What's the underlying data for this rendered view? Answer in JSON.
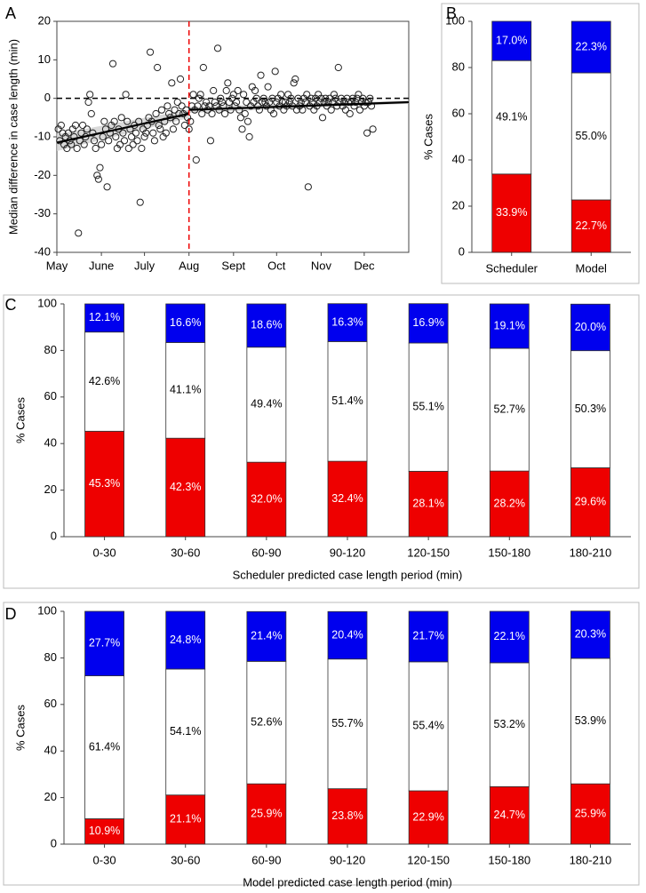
{
  "colors": {
    "red": "#ee0000",
    "white": "#ffffff",
    "blue": "#0000ee",
    "axis": "#444444",
    "refline": "#ee0000"
  },
  "chart_data": [
    {
      "id": "A",
      "panel_label": "A",
      "type": "scatter",
      "ylabel": "Median difference in case length (min)",
      "xlabel": "",
      "x_tick_labels": [
        "May",
        "June",
        "July",
        "Aug",
        "Sept",
        "Oct",
        "Nov",
        "Dec"
      ],
      "x_ticks": [
        0,
        31,
        61,
        92,
        123,
        153,
        184,
        214
      ],
      "xlim": [
        0,
        245
      ],
      "ylim": [
        -40,
        20
      ],
      "y_ticks": [
        -40,
        -30,
        -20,
        -10,
        0,
        10,
        20
      ],
      "points": [
        [
          1,
          -8
        ],
        [
          2,
          -11
        ],
        [
          3,
          -7
        ],
        [
          4,
          -9
        ],
        [
          5,
          -12
        ],
        [
          6,
          -10
        ],
        [
          7,
          -13
        ],
        [
          8,
          -9
        ],
        [
          9,
          -11
        ],
        [
          10,
          -12
        ],
        [
          11,
          -8
        ],
        [
          12,
          -10
        ],
        [
          13,
          -7
        ],
        [
          14,
          -13
        ],
        [
          15,
          -35
        ],
        [
          16,
          -11
        ],
        [
          17,
          -9
        ],
        [
          18,
          -7
        ],
        [
          19,
          -12
        ],
        [
          20,
          -10
        ],
        [
          21,
          -8
        ],
        [
          22,
          -1
        ],
        [
          23,
          1
        ],
        [
          24,
          -4
        ],
        [
          25,
          -9
        ],
        [
          26,
          -11
        ],
        [
          27,
          -13
        ],
        [
          28,
          -20
        ],
        [
          29,
          -21
        ],
        [
          30,
          -18
        ],
        [
          31,
          -12
        ],
        [
          32,
          -10
        ],
        [
          33,
          -6
        ],
        [
          34,
          -8
        ],
        [
          35,
          -23
        ],
        [
          36,
          -11
        ],
        [
          37,
          -9
        ],
        [
          38,
          -7
        ],
        [
          39,
          9
        ],
        [
          40,
          -6
        ],
        [
          41,
          -10
        ],
        [
          42,
          -13
        ],
        [
          43,
          -8
        ],
        [
          44,
          -12
        ],
        [
          45,
          -5
        ],
        [
          46,
          -9
        ],
        [
          47,
          -11
        ],
        [
          48,
          1
        ],
        [
          49,
          -6
        ],
        [
          50,
          -13
        ],
        [
          51,
          -8
        ],
        [
          52,
          -10
        ],
        [
          53,
          -12
        ],
        [
          54,
          -7
        ],
        [
          55,
          -9
        ],
        [
          56,
          -11
        ],
        [
          57,
          -6
        ],
        [
          58,
          -27
        ],
        [
          59,
          -13
        ],
        [
          60,
          -8
        ],
        [
          61,
          -10
        ],
        [
          62,
          -9
        ],
        [
          63,
          -7
        ],
        [
          64,
          -5
        ],
        [
          65,
          12
        ],
        [
          66,
          -6
        ],
        [
          67,
          -9
        ],
        [
          68,
          -11
        ],
        [
          69,
          -4
        ],
        [
          70,
          8
        ],
        [
          71,
          -7
        ],
        [
          72,
          -8
        ],
        [
          73,
          -3
        ],
        [
          74,
          -10
        ],
        [
          75,
          -6
        ],
        [
          76,
          -9
        ],
        [
          77,
          -2
        ],
        [
          78,
          -4
        ],
        [
          79,
          -5
        ],
        [
          80,
          4
        ],
        [
          81,
          -8
        ],
        [
          82,
          -3
        ],
        [
          83,
          -6
        ],
        [
          84,
          -1
        ],
        [
          85,
          -4
        ],
        [
          86,
          5
        ],
        [
          87,
          -2
        ],
        [
          88,
          -4
        ],
        [
          89,
          -7
        ],
        [
          90,
          -3
        ],
        [
          91,
          -5
        ],
        [
          92,
          -8
        ],
        [
          93,
          -6
        ],
        [
          94,
          -2
        ],
        [
          95,
          1
        ],
        [
          96,
          -3
        ],
        [
          97,
          -16
        ],
        [
          98,
          -2
        ],
        [
          99,
          0
        ],
        [
          100,
          1
        ],
        [
          101,
          -4
        ],
        [
          102,
          8
        ],
        [
          103,
          -2
        ],
        [
          104,
          -1
        ],
        [
          105,
          -3
        ],
        [
          106,
          -2
        ],
        [
          107,
          -11
        ],
        [
          108,
          -4
        ],
        [
          109,
          2
        ],
        [
          110,
          -1
        ],
        [
          111,
          -2
        ],
        [
          112,
          13
        ],
        [
          113,
          -3
        ],
        [
          114,
          0
        ],
        [
          115,
          -1
        ],
        [
          116,
          -2
        ],
        [
          117,
          -4
        ],
        [
          118,
          2
        ],
        [
          119,
          4
        ],
        [
          120,
          -1
        ],
        [
          121,
          -3
        ],
        [
          122,
          0
        ],
        [
          123,
          1
        ],
        [
          124,
          -2
        ],
        [
          125,
          -1
        ],
        [
          126,
          2
        ],
        [
          127,
          -3
        ],
        [
          128,
          -5
        ],
        [
          129,
          -8
        ],
        [
          130,
          1
        ],
        [
          131,
          -4
        ],
        [
          132,
          -1
        ],
        [
          133,
          -6
        ],
        [
          134,
          -10
        ],
        [
          135,
          -2
        ],
        [
          136,
          3
        ],
        [
          137,
          -1
        ],
        [
          138,
          2
        ],
        [
          139,
          0
        ],
        [
          140,
          -2
        ],
        [
          141,
          -3
        ],
        [
          142,
          6
        ],
        [
          143,
          -1
        ],
        [
          144,
          0
        ],
        [
          145,
          -1
        ],
        [
          146,
          -2
        ],
        [
          147,
          3
        ],
        [
          148,
          -1
        ],
        [
          149,
          -3
        ],
        [
          150,
          0
        ],
        [
          151,
          -4
        ],
        [
          152,
          7
        ],
        [
          153,
          -1
        ],
        [
          154,
          0
        ],
        [
          155,
          -2
        ],
        [
          156,
          1
        ],
        [
          157,
          -1
        ],
        [
          158,
          -3
        ],
        [
          159,
          -1
        ],
        [
          160,
          -2
        ],
        [
          161,
          1
        ],
        [
          162,
          -1
        ],
        [
          163,
          0
        ],
        [
          164,
          -2
        ],
        [
          165,
          4
        ],
        [
          166,
          5
        ],
        [
          167,
          -3
        ],
        [
          168,
          0
        ],
        [
          169,
          -2
        ],
        [
          170,
          -1
        ],
        [
          171,
          -3
        ],
        [
          172,
          0
        ],
        [
          173,
          -1
        ],
        [
          174,
          1
        ],
        [
          175,
          -23
        ],
        [
          176,
          -2
        ],
        [
          177,
          0
        ],
        [
          178,
          -1
        ],
        [
          179,
          -3
        ],
        [
          180,
          0
        ],
        [
          181,
          -2
        ],
        [
          182,
          1
        ],
        [
          183,
          -1
        ],
        [
          184,
          0
        ],
        [
          185,
          -5
        ],
        [
          186,
          -1
        ],
        [
          187,
          0
        ],
        [
          188,
          -2
        ],
        [
          189,
          -1
        ],
        [
          190,
          0
        ],
        [
          191,
          -3
        ],
        [
          192,
          -1
        ],
        [
          193,
          1
        ],
        [
          194,
          0
        ],
        [
          195,
          -2
        ],
        [
          196,
          8
        ],
        [
          197,
          -1
        ],
        [
          198,
          0
        ],
        [
          199,
          -2
        ],
        [
          200,
          -1
        ],
        [
          201,
          -3
        ],
        [
          202,
          0
        ],
        [
          203,
          -1
        ],
        [
          204,
          -4
        ],
        [
          205,
          -1
        ],
        [
          206,
          0
        ],
        [
          207,
          -2
        ],
        [
          208,
          -1
        ],
        [
          209,
          0
        ],
        [
          210,
          1
        ],
        [
          211,
          -3
        ],
        [
          212,
          -1
        ],
        [
          213,
          0
        ],
        [
          214,
          -2
        ],
        [
          215,
          -1
        ],
        [
          216,
          -9
        ],
        [
          217,
          -1
        ],
        [
          218,
          0
        ],
        [
          219,
          -2
        ],
        [
          220,
          -8
        ]
      ],
      "trend_lines": [
        {
          "name": "pre",
          "points": [
            [
              0,
              -11.5
            ],
            [
              92,
              -4
            ]
          ]
        },
        {
          "name": "post",
          "points": [
            [
              92,
              -3
            ],
            [
              245,
              -1
            ]
          ]
        }
      ],
      "zero_line": 0,
      "vline_x": 92
    },
    {
      "id": "B",
      "panel_label": "B",
      "type": "bar",
      "stacked": true,
      "ylabel": "% Cases",
      "xlabel": "",
      "categories": [
        "Scheduler",
        "Model"
      ],
      "ylim": [
        0,
        100
      ],
      "y_ticks": [
        0,
        20,
        40,
        60,
        80,
        100
      ],
      "series": [
        {
          "name": "red",
          "values": [
            33.9,
            22.7
          ],
          "labels": [
            "33.9%",
            "22.7%"
          ]
        },
        {
          "name": "white",
          "values": [
            49.1,
            55.0
          ],
          "labels": [
            "49.1%",
            "55.0%"
          ]
        },
        {
          "name": "blue",
          "values": [
            17.0,
            22.3
          ],
          "labels": [
            "17.0%",
            "22.3%"
          ]
        }
      ]
    },
    {
      "id": "C",
      "panel_label": "C",
      "type": "bar",
      "stacked": true,
      "ylabel": "% Cases",
      "xlabel": "Scheduler predicted case length period (min)",
      "categories": [
        "0-30",
        "30-60",
        "60-90",
        "90-120",
        "120-150",
        "150-180",
        "180-210"
      ],
      "ylim": [
        0,
        100
      ],
      "y_ticks": [
        0,
        20,
        40,
        60,
        80,
        100
      ],
      "series": [
        {
          "name": "red",
          "values": [
            45.3,
            42.3,
            32.0,
            32.4,
            28.1,
            28.2,
            29.6
          ],
          "labels": [
            "45.3%",
            "42.3%",
            "32.0%",
            "32.4%",
            "28.1%",
            "28.2%",
            "29.6%"
          ]
        },
        {
          "name": "white",
          "values": [
            42.6,
            41.1,
            49.4,
            51.4,
            55.1,
            52.7,
            50.3
          ],
          "labels": [
            "42.6%",
            "41.1%",
            "49.4%",
            "51.4%",
            "55.1%",
            "52.7%",
            "50.3%"
          ]
        },
        {
          "name": "blue",
          "values": [
            12.1,
            16.6,
            18.6,
            16.3,
            16.9,
            19.1,
            20.0
          ],
          "labels": [
            "12.1%",
            "16.6%",
            "18.6%",
            "16.3%",
            "16.9%",
            "19.1%",
            "20.0%"
          ]
        }
      ]
    },
    {
      "id": "D",
      "panel_label": "D",
      "type": "bar",
      "stacked": true,
      "ylabel": "% Cases",
      "xlabel": "Model predicted case length period (min)",
      "categories": [
        "0-30",
        "30-60",
        "60-90",
        "90-120",
        "120-150",
        "150-180",
        "180-210"
      ],
      "ylim": [
        0,
        100
      ],
      "y_ticks": [
        0,
        20,
        40,
        60,
        80,
        100
      ],
      "series": [
        {
          "name": "red",
          "values": [
            10.9,
            21.1,
            25.9,
            23.8,
            22.9,
            24.7,
            25.9
          ],
          "labels": [
            "10.9%",
            "21.1%",
            "25.9%",
            "23.8%",
            "22.9%",
            "24.7%",
            "25.9%"
          ]
        },
        {
          "name": "white",
          "values": [
            61.4,
            54.1,
            52.6,
            55.7,
            55.4,
            53.2,
            53.9
          ],
          "labels": [
            "61.4%",
            "54.1%",
            "52.6%",
            "55.7%",
            "55.4%",
            "53.2%",
            "53.9%"
          ]
        },
        {
          "name": "blue",
          "values": [
            27.7,
            24.8,
            21.4,
            20.4,
            21.7,
            22.1,
            20.3
          ],
          "labels": [
            "27.7%",
            "24.8%",
            "21.4%",
            "20.4%",
            "21.7%",
            "22.1%",
            "20.3%"
          ]
        }
      ]
    }
  ]
}
